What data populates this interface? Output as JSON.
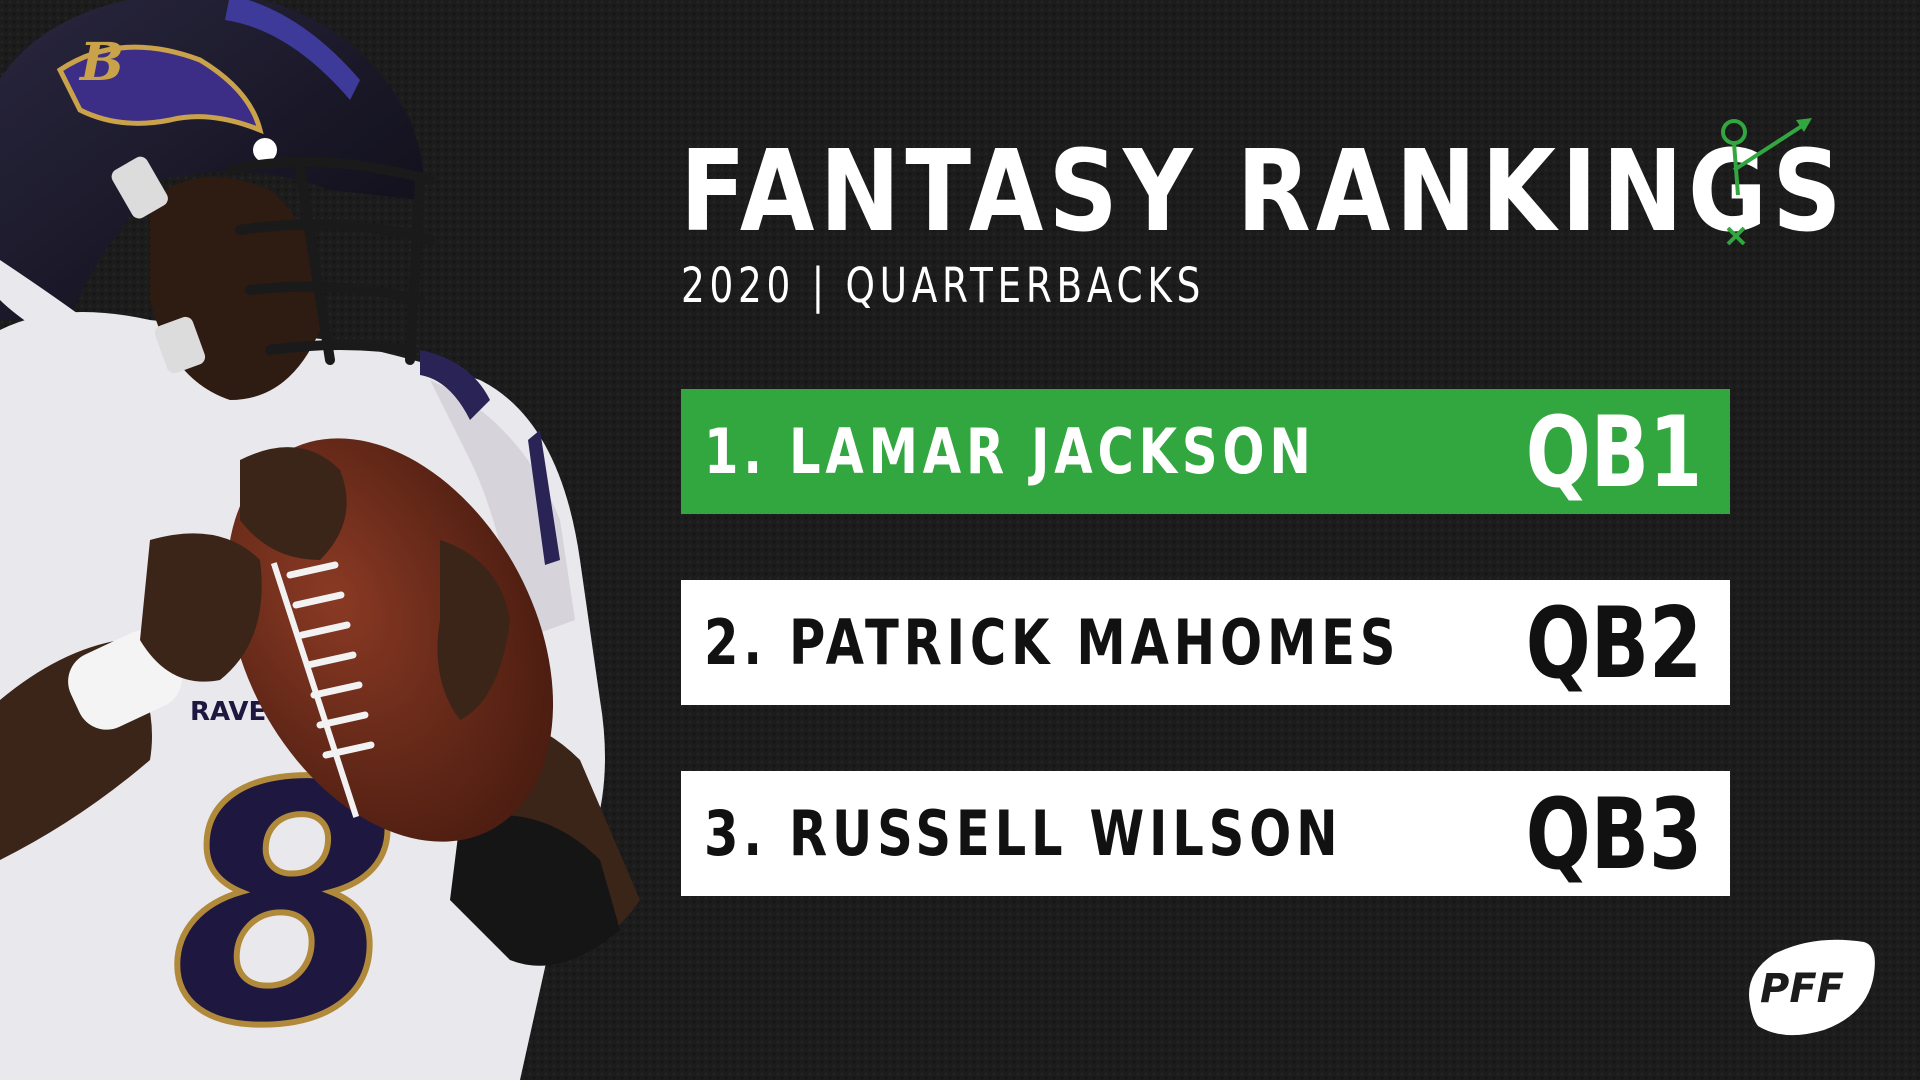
{
  "header": {
    "title": "FANTASY RANKINGS",
    "subtitle": "2020 | QUARTERBACKS"
  },
  "rankings": [
    {
      "name": "1. LAMAR JACKSON",
      "position": "QB1",
      "highlighted": true
    },
    {
      "name": "2. PATRICK MAHOMES",
      "position": "QB2",
      "highlighted": false
    },
    {
      "name": "3. RUSSELL WILSON",
      "position": "QB3",
      "highlighted": false
    }
  ],
  "player_photo": {
    "jersey_number": "8",
    "jersey_text": "RAVENS"
  },
  "brand": {
    "logo_text": "PFF",
    "icon": "play-diagram-icon"
  },
  "colors": {
    "background": "#1c1c1c",
    "accent_green": "#32a63f",
    "text_white": "#ffffff",
    "text_dark": "#111111"
  }
}
